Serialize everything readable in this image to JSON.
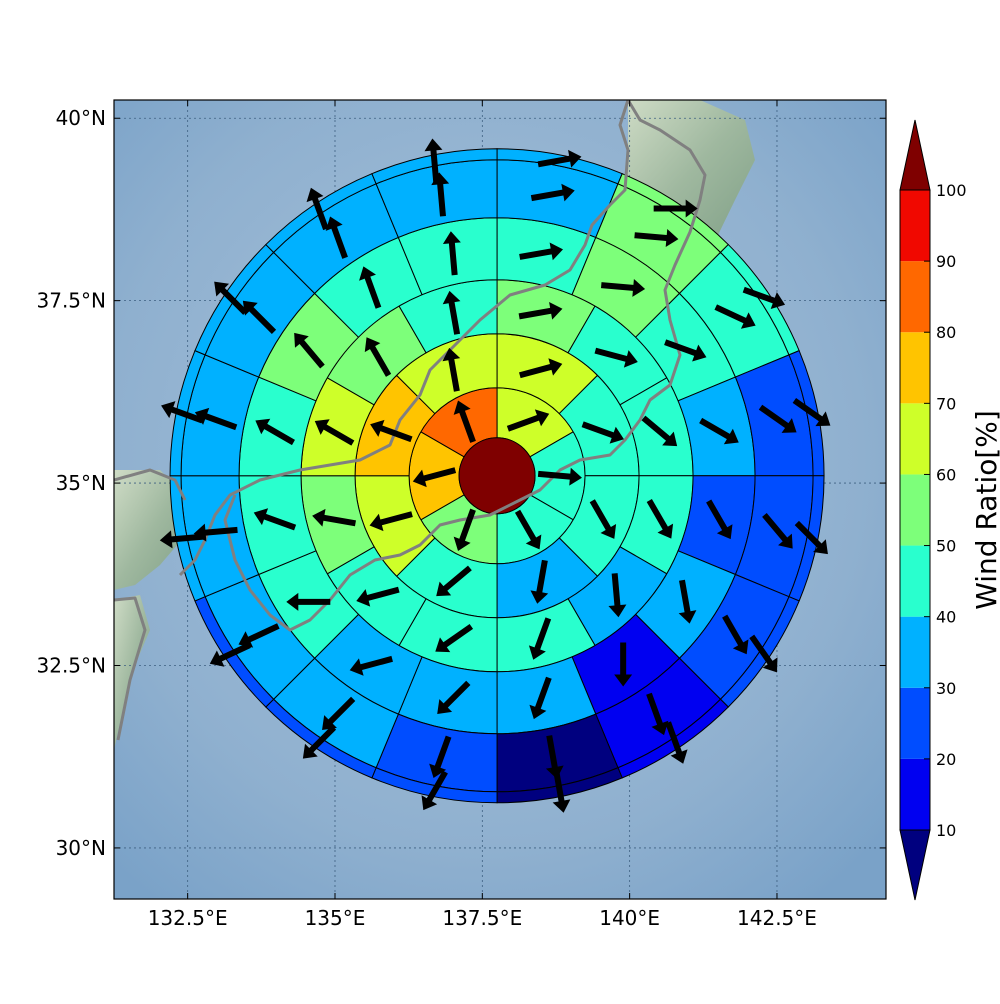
{
  "chart_data": {
    "type": "heatmap",
    "geometry": "polar-sectors",
    "colorbar": {
      "label": "Wind Ratio[%]",
      "ticks": [
        10,
        20,
        30,
        40,
        50,
        60,
        70,
        80,
        90,
        100
      ],
      "tick_labels": [
        "10",
        "20",
        "30",
        "40",
        "50",
        "60",
        "70",
        "80",
        "90",
        "100"
      ],
      "extend": "both",
      "bins": [
        {
          "from": 0,
          "to": 10,
          "color": "#00007f"
        },
        {
          "from": 10,
          "to": 20,
          "color": "#0000f1"
        },
        {
          "from": 20,
          "to": 30,
          "color": "#004dff"
        },
        {
          "from": 30,
          "to": 40,
          "color": "#00b1ff"
        },
        {
          "from": 40,
          "to": 50,
          "color": "#29ffce"
        },
        {
          "from": 50,
          "to": 60,
          "color": "#7dff7a"
        },
        {
          "from": 60,
          "to": 70,
          "color": "#ceff29"
        },
        {
          "from": 70,
          "to": 80,
          "color": "#ffc400"
        },
        {
          "from": 80,
          "to": 90,
          "color": "#ff6800"
        },
        {
          "from": 90,
          "to": 100,
          "color": "#f10800"
        },
        {
          "from": 100,
          "to": 110,
          "color": "#7f0000"
        }
      ]
    },
    "map": {
      "lon_range": [
        131.25,
        144.35
      ],
      "lat_range": [
        29.3,
        40.25
      ],
      "center": {
        "lon": 137.75,
        "lat": 35.1
      },
      "x_ticks": [
        132.5,
        135,
        137.5,
        140,
        142.5
      ],
      "x_tick_labels": [
        "132.5°E",
        "135°E",
        "137.5°E",
        "140°E",
        "142.5°E"
      ],
      "y_ticks": [
        30,
        32.5,
        35,
        37.5,
        40
      ],
      "y_tick_labels": [
        "30°N",
        "32.5°N",
        "35°N",
        "37.5°N",
        "40°N"
      ],
      "grid": true,
      "background": "shaded relief with sea"
    },
    "center_cell": {
      "value": 100
    },
    "rings": [
      {
        "sectors": 6,
        "values": [
          60,
          40,
          45,
          55,
          75,
          85
        ],
        "arrow_dir": [
          70,
          95,
          150,
          200,
          255,
          340
        ]
      },
      {
        "sectors": 8,
        "values": [
          65,
          45,
          42,
          38,
          48,
          65,
          75,
          65
        ],
        "arrow_dir": [
          75,
          110,
          150,
          190,
          230,
          255,
          290,
          350
        ]
      },
      {
        "sectors": 12,
        "values": [
          55,
          48,
          45,
          42,
          38,
          42,
          42,
          48,
          52,
          60,
          55,
          48
        ],
        "arrow_dir": [
          80,
          105,
          130,
          150,
          175,
          200,
          235,
          255,
          280,
          300,
          330,
          350
        ]
      },
      {
        "sectors": 16,
        "values": [
          45,
          55,
          45,
          35,
          25,
          35,
          15,
          35,
          35,
          35,
          45,
          45,
          45,
          50,
          45,
          45
        ],
        "arrow_dir": [
          80,
          95,
          110,
          120,
          150,
          170,
          180,
          200,
          225,
          255,
          270,
          290,
          300,
          320,
          340,
          355
        ]
      },
      {
        "sectors": 16,
        "values": [
          35,
          55,
          45,
          25,
          25,
          25,
          15,
          5,
          25,
          35,
          35,
          35,
          35,
          35,
          35,
          35
        ],
        "arrow_dir": [
          80,
          95,
          115,
          125,
          140,
          150,
          160,
          170,
          200,
          225,
          245,
          265,
          290,
          315,
          340,
          355
        ]
      },
      {
        "sectors": 16,
        "values": [
          35,
          55,
          45,
          25,
          25,
          25,
          15,
          5,
          25,
          25,
          25,
          35,
          35,
          35,
          35,
          35
        ],
        "arrow_dir": [
          80,
          90,
          110,
          125,
          135,
          145,
          160,
          170,
          210,
          225,
          245,
          265,
          290,
          315,
          340,
          355
        ]
      }
    ]
  }
}
